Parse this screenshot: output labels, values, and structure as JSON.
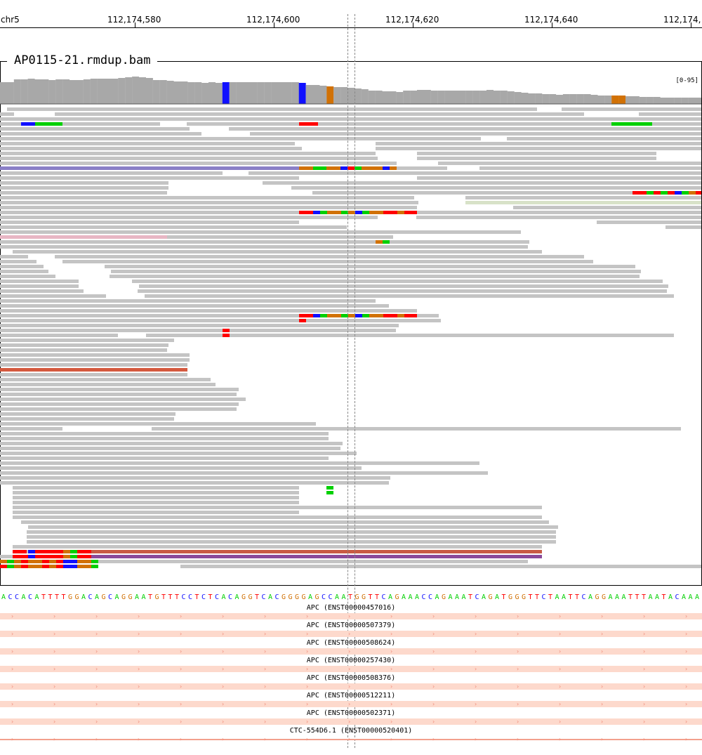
{
  "ruler": {
    "chromosome": "chr5",
    "ticks": [
      "112,174,580",
      "112,174,600",
      "112,174,620",
      "112,174,640",
      "112,174,"
    ]
  },
  "track": {
    "name": "AP0115-21.rmdup.bam",
    "coverage_range": "[0-95]"
  },
  "colors": {
    "read": "#c4c4c4",
    "coverage": "#a8a8a8",
    "A": "#00d000",
    "C": "#1010ff",
    "G": "#d17105",
    "T": "#ff0000",
    "gene": "#f3a08d"
  },
  "sequence": {
    "bases": "ACCACATTTTGGACAGCAGGAATGTTTCCTCTCACAGGTCACGGGGAGCCAATGGTTCAGAAACCAGAAATCAGATGGGTTCTAATTCAGGAAATTTAATACAAA"
  },
  "genes": [
    {
      "label": "APC (ENST00000457016)"
    },
    {
      "label": "APC (ENST00000507379)"
    },
    {
      "label": "APC (ENST00000508624)"
    },
    {
      "label": "APC (ENST00000257430)"
    },
    {
      "label": "APC (ENST00000508376)"
    },
    {
      "label": "APC (ENST00000512211)"
    },
    {
      "label": "APC (ENST00000502371)"
    },
    {
      "label": "CTC-554D6.1 (ENST00000520401)"
    }
  ]
}
